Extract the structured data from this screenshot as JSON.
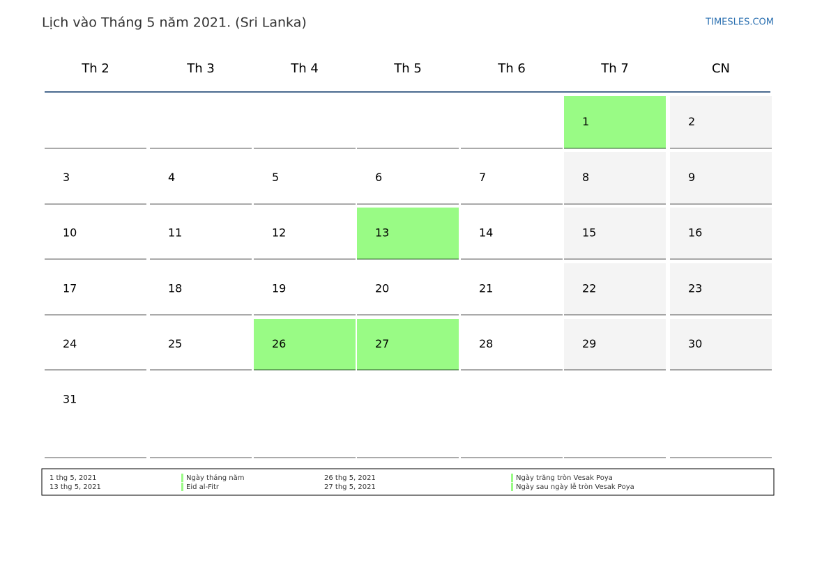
{
  "title": "Lịch vào Tháng 5 năm 2021. (Sri Lanka)",
  "site": "TIMESLES.COM",
  "weekdays": [
    "Th 2",
    "Th 3",
    "Th 4",
    "Th 5",
    "Th 6",
    "Th 7",
    "CN"
  ],
  "weeks": [
    [
      null,
      null,
      null,
      null,
      null,
      {
        "day": 1,
        "holiday": true
      },
      {
        "day": 2
      }
    ],
    [
      {
        "day": 3
      },
      {
        "day": 4
      },
      {
        "day": 5
      },
      {
        "day": 6
      },
      {
        "day": 7
      },
      {
        "day": 8
      },
      {
        "day": 9
      }
    ],
    [
      {
        "day": 10
      },
      {
        "day": 11
      },
      {
        "day": 12
      },
      {
        "day": 13,
        "holiday": true
      },
      {
        "day": 14
      },
      {
        "day": 15
      },
      {
        "day": 16
      }
    ],
    [
      {
        "day": 17
      },
      {
        "day": 18
      },
      {
        "day": 19
      },
      {
        "day": 20
      },
      {
        "day": 21
      },
      {
        "day": 22
      },
      {
        "day": 23
      }
    ],
    [
      {
        "day": 24
      },
      {
        "day": 25
      },
      {
        "day": 26,
        "holiday": true
      },
      {
        "day": 27,
        "holiday": true
      },
      {
        "day": 28
      },
      {
        "day": 29
      },
      {
        "day": 30
      }
    ],
    [
      {
        "day": 31
      },
      null,
      null,
      null,
      null,
      null,
      null
    ]
  ],
  "legend": [
    {
      "date": "1 thg 5, 2021",
      "name": "Ngày tháng năm"
    },
    {
      "date": "13 thg 5, 2021",
      "name": "Eid al-Fitr"
    },
    {
      "date": "26 thg 5, 2021",
      "name": "Ngày trăng tròn Vesak Poya"
    },
    {
      "date": "27 thg 5, 2021",
      "name": "Ngày sau ngày lễ tròn Vesak Poya"
    }
  ]
}
